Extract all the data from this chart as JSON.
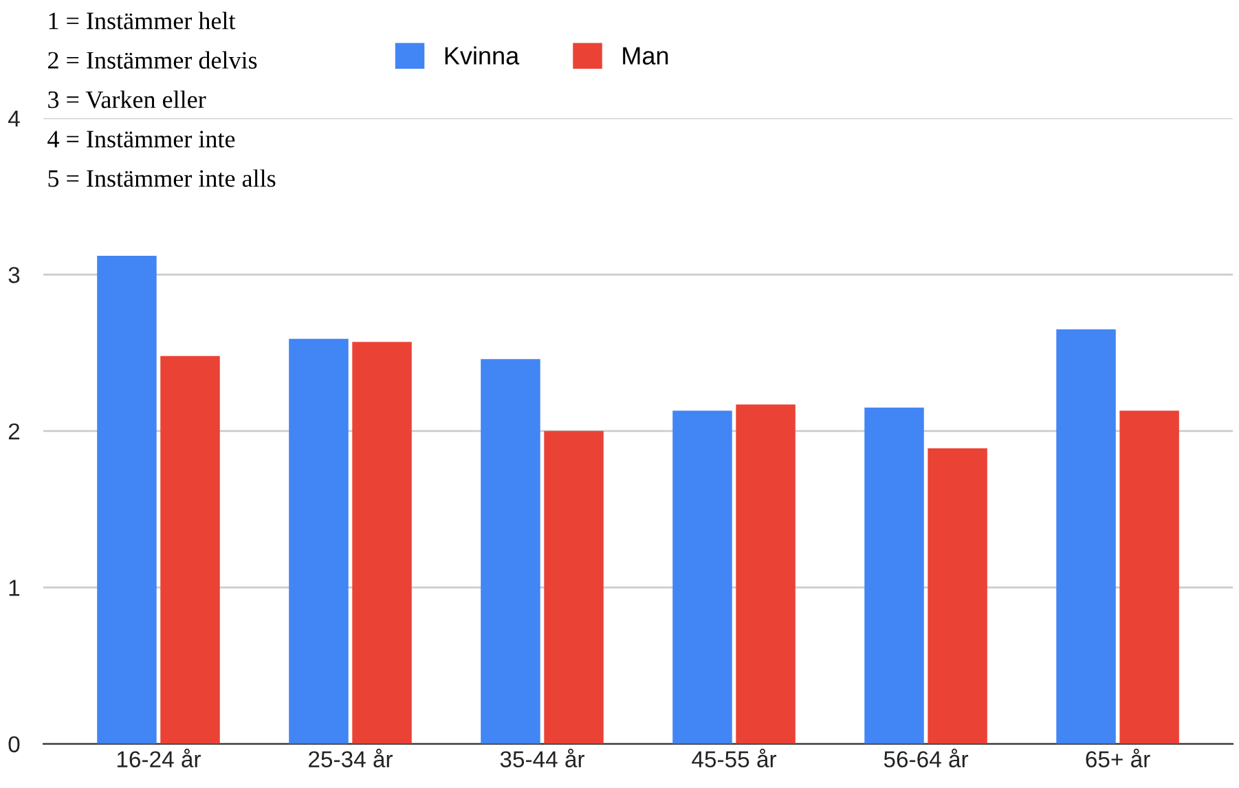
{
  "chart_data": {
    "type": "bar",
    "categories": [
      "16-24 år",
      "25-34 år",
      "35-44 år",
      "45-55 år",
      "56-64 år",
      "65+ år"
    ],
    "series": [
      {
        "name": "Kvinna",
        "color": "#4285f4",
        "values": [
          3.12,
          2.59,
          2.46,
          2.13,
          2.15,
          2.65
        ]
      },
      {
        "name": "Man",
        "color": "#ea4335",
        "values": [
          2.48,
          2.57,
          2.0,
          2.17,
          1.89,
          2.13
        ]
      }
    ],
    "ylim": [
      0,
      4
    ],
    "yticks": [
      0,
      1,
      2,
      3,
      4
    ],
    "grid": "y",
    "legend": "top",
    "annotations": [
      "1 = Instämmer helt",
      "2 = Instämmer delvis",
      "3 = Varken eller",
      "4 = Instämmer inte",
      "5 = Instämmer inte alls"
    ]
  }
}
